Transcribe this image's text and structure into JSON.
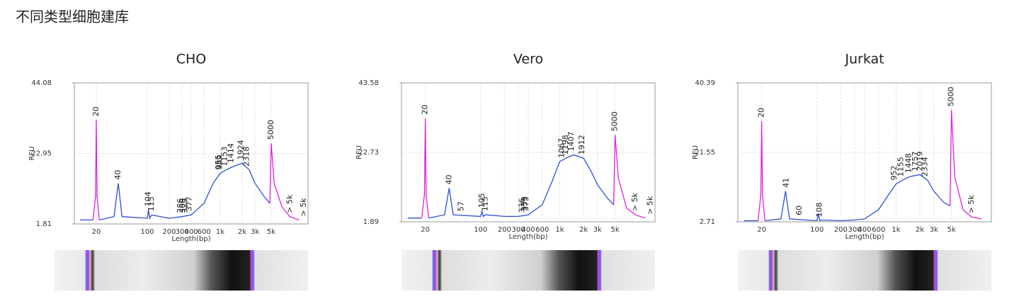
{
  "header": {
    "title": "不同类型细胞建库"
  },
  "chart_data": [
    {
      "type": "line",
      "title": "CHO",
      "x_label": "Length(bp)",
      "y_label": "RFU",
      "log_x": true,
      "grid": true,
      "x": [
        12,
        18,
        19.5,
        20,
        20.5,
        22,
        35,
        40,
        45,
        100,
        104,
        108,
        115,
        200,
        300,
        400,
        600,
        800,
        1000,
        1200,
        1500,
        2000,
        2500,
        3000,
        4000,
        4800,
        5000,
        5500,
        7000,
        9000,
        12000
      ],
      "series": [
        {
          "color": "#2f4fd0",
          "values": [
            3,
            3,
            null,
            null,
            null,
            3,
            4,
            14,
            4,
            3.5,
            6,
            3.5,
            4.5,
            3.5,
            4,
            4.5,
            8,
            14,
            17,
            18,
            19,
            20,
            18,
            14,
            10,
            8,
            null,
            null,
            null,
            null,
            null
          ]
        },
        {
          "color": "#e020e0",
          "values": [
            null,
            3,
            10,
            33,
            10,
            3,
            null,
            null,
            null,
            null,
            null,
            null,
            null,
            null,
            null,
            null,
            null,
            null,
            null,
            null,
            null,
            null,
            null,
            null,
            null,
            8,
            26,
            14,
            7,
            4,
            3
          ]
        }
      ],
      "xlim": [
        10,
        16000
      ],
      "xticks": [
        20,
        100,
        200,
        300,
        400,
        600,
        {
          "value": 1000,
          "label": "1k"
        },
        {
          "value": 2000,
          "label": "2k"
        },
        {
          "value": 3000,
          "label": "3k"
        },
        {
          "value": 5000,
          "label": "5k"
        }
      ],
      "ylim": [
        1.81,
        44.08
      ],
      "yticks": [
        1.81,
        22.95,
        44.08
      ],
      "annotation_color": "#3c9a14",
      "annotations": [
        {
          "label": "20",
          "x": 20
        },
        {
          "label": "40",
          "x": 40
        },
        {
          "label": "104",
          "x": 104
        },
        {
          "label": "115",
          "x": 115
        },
        {
          "label": "286",
          "x": 286
        },
        {
          "label": "309",
          "x": 309
        },
        {
          "label": "329",
          "x": 329
        },
        {
          "label": "377",
          "x": 377
        },
        {
          "label": "955",
          "x": 955
        },
        {
          "label": "989",
          "x": 989
        },
        {
          "label": "1153",
          "x": 1153
        },
        {
          "label": "1414",
          "x": 1414
        },
        {
          "label": "1924",
          "x": 1924
        },
        {
          "label": "2318",
          "x": 2318
        },
        {
          "label": "5000",
          "x": 5000
        },
        {
          "label": "> 5k",
          "x": 9000
        },
        {
          "label": "> 5k",
          "x": 14000
        }
      ]
    },
    {
      "type": "line",
      "title": "Vero",
      "x_label": "Length(bp)",
      "y_label": "RFU",
      "log_x": true,
      "grid": true,
      "x": [
        12,
        18,
        19.5,
        20,
        20.5,
        22,
        35,
        40,
        45,
        100,
        104,
        108,
        115,
        200,
        300,
        400,
        600,
        800,
        1000,
        1200,
        1500,
        2000,
        2500,
        3000,
        4000,
        4800,
        5000,
        5500,
        7000,
        9000,
        12000
      ],
      "series": [
        {
          "color": "#2f4fd0",
          "values": [
            3,
            3,
            null,
            null,
            null,
            3,
            4,
            12,
            4,
            3.5,
            5,
            3.5,
            4,
            3.5,
            3.5,
            4,
            7,
            14,
            20,
            21,
            22,
            21,
            17,
            13,
            9,
            7,
            null,
            null,
            null,
            null,
            null
          ]
        },
        {
          "color": "#e020e0",
          "values": [
            null,
            3,
            10,
            33,
            10,
            3,
            null,
            null,
            null,
            null,
            null,
            null,
            null,
            null,
            null,
            null,
            null,
            null,
            null,
            null,
            null,
            null,
            null,
            null,
            null,
            7,
            28,
            15,
            6,
            4,
            3
          ]
        }
      ],
      "xlim": [
        10,
        16000
      ],
      "xticks": [
        20,
        100,
        200,
        300,
        400,
        600,
        {
          "value": 1000,
          "label": "1k"
        },
        {
          "value": 2000,
          "label": "2k"
        },
        {
          "value": 3000,
          "label": "3k"
        },
        {
          "value": 5000,
          "label": "5k"
        }
      ],
      "ylim": [
        1.89,
        43.58
      ],
      "yticks": [
        1.89,
        22.73,
        43.58
      ],
      "annotation_color": "#3c9a14",
      "annotations": [
        {
          "label": "20",
          "x": 20
        },
        {
          "label": "40",
          "x": 40
        },
        {
          "label": "57",
          "x": 57
        },
        {
          "label": "105",
          "x": 105
        },
        {
          "label": "115",
          "x": 115
        },
        {
          "label": "336",
          "x": 336
        },
        {
          "label": "359",
          "x": 359
        },
        {
          "label": "375",
          "x": 375
        },
        {
          "label": "1067",
          "x": 1067
        },
        {
          "label": "1198",
          "x": 1198
        },
        {
          "label": "1407",
          "x": 1407
        },
        {
          "label": "1912",
          "x": 1912
        },
        {
          "label": "5000",
          "x": 5000
        },
        {
          "label": "> 5k",
          "x": 9000
        },
        {
          "label": "> 5k",
          "x": 14000
        }
      ]
    },
    {
      "type": "line",
      "title": "Jurkat",
      "x_label": "Length(bp)",
      "y_label": "RFU",
      "log_x": true,
      "grid": true,
      "x": [
        12,
        18,
        19.5,
        20,
        20.5,
        22,
        35,
        40,
        45,
        100,
        104,
        108,
        115,
        200,
        300,
        400,
        600,
        800,
        1000,
        1200,
        1500,
        2000,
        2500,
        3000,
        4000,
        4800,
        5000,
        5500,
        7000,
        9000,
        12000
      ],
      "series": [
        {
          "color": "#2f4fd0",
          "values": [
            3,
            3,
            null,
            null,
            null,
            3,
            3.5,
            11,
            3.5,
            3,
            5,
            3,
            3.2,
            3,
            3.2,
            3.5,
            6,
            10,
            13,
            14,
            15,
            15.5,
            14,
            11,
            8,
            7,
            null,
            null,
            null,
            null,
            null
          ]
        },
        {
          "color": "#e020e0",
          "values": [
            null,
            3,
            10,
            30,
            10,
            3,
            null,
            null,
            null,
            null,
            null,
            null,
            null,
            null,
            null,
            null,
            null,
            null,
            null,
            null,
            null,
            null,
            null,
            null,
            null,
            7,
            33,
            15,
            6,
            4,
            3.5
          ]
        }
      ],
      "xlim": [
        10,
        16000
      ],
      "xticks": [
        20,
        100,
        200,
        300,
        400,
        600,
        {
          "value": 1000,
          "label": "1k"
        },
        {
          "value": 2000,
          "label": "2k"
        },
        {
          "value": 3000,
          "label": "3k"
        },
        {
          "value": 5000,
          "label": "5k"
        }
      ],
      "ylim": [
        2.71,
        40.39
      ],
      "yticks": [
        2.71,
        21.55,
        40.39
      ],
      "annotation_color": "#3c9a14",
      "annotations": [
        {
          "label": "20",
          "x": 20
        },
        {
          "label": "41",
          "x": 41
        },
        {
          "label": "60",
          "x": 60
        },
        {
          "label": "108",
          "x": 108
        },
        {
          "label": "952",
          "x": 952
        },
        {
          "label": "1155",
          "x": 1155
        },
        {
          "label": "1448",
          "x": 1448
        },
        {
          "label": "1757",
          "x": 1757
        },
        {
          "label": "2019",
          "x": 2019
        },
        {
          "label": "2334",
          "x": 2334
        },
        {
          "label": "5000",
          "x": 5000
        },
        {
          "label": "> 5k",
          "x": 9000
        }
      ]
    }
  ]
}
